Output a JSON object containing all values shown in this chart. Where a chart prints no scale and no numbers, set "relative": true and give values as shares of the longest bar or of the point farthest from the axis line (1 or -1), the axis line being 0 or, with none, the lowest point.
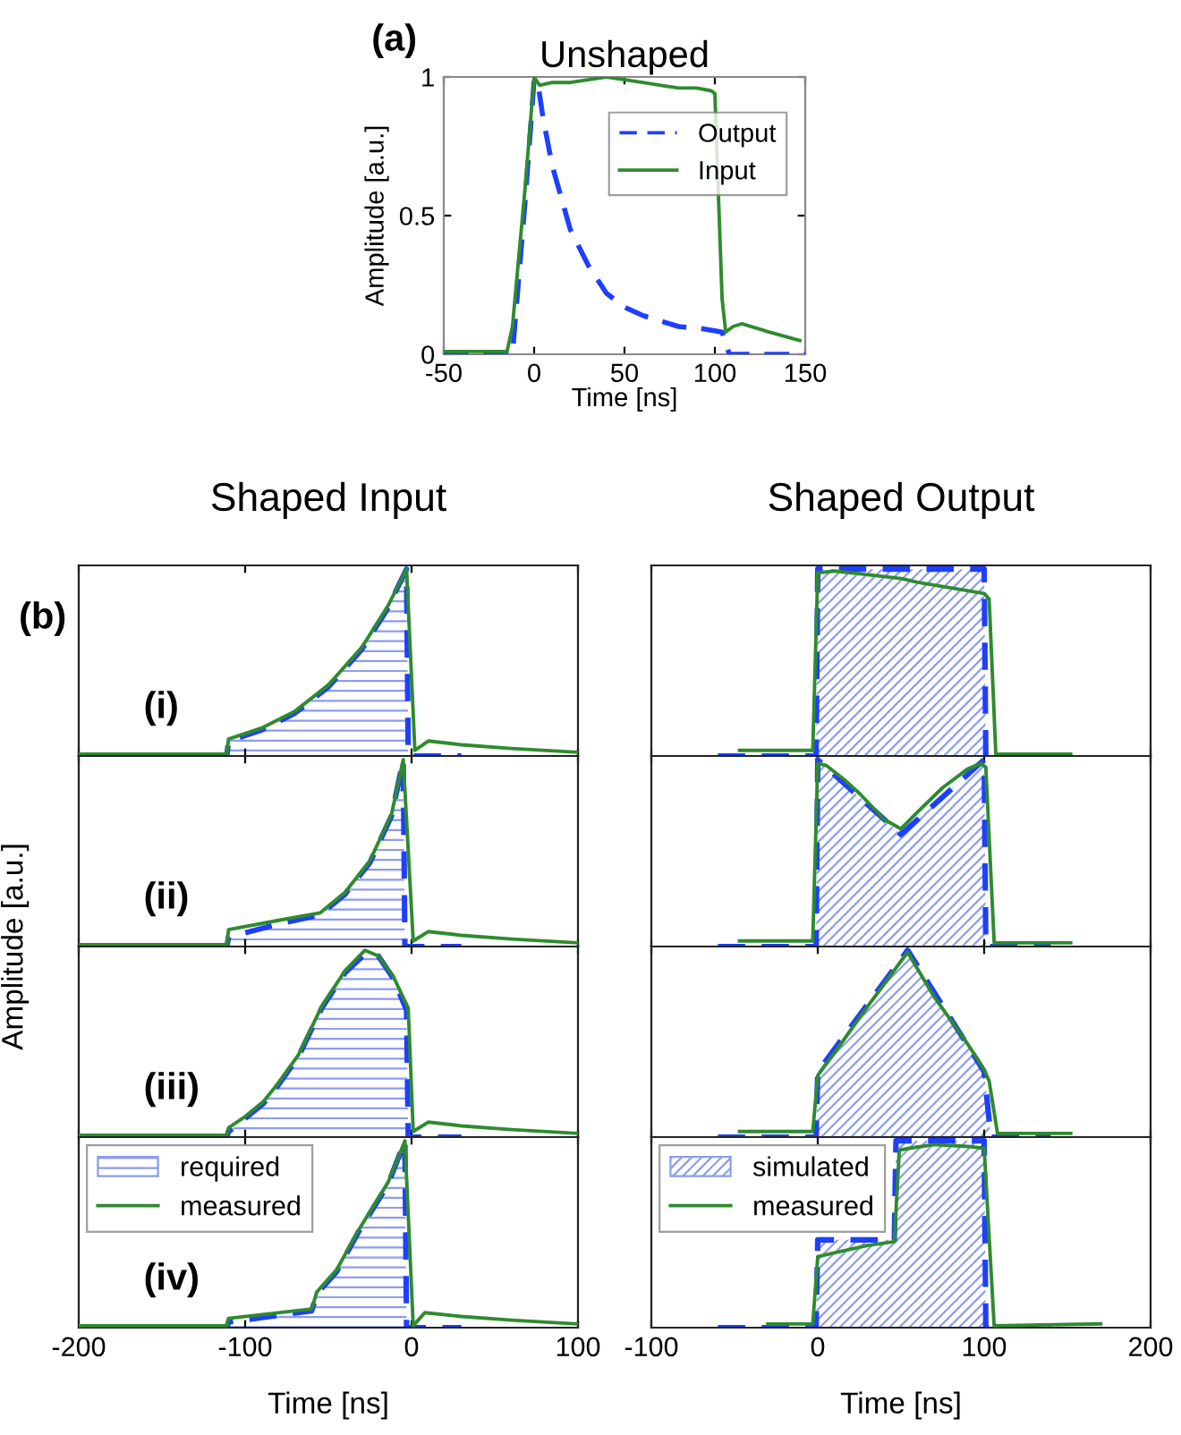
{
  "chart_data": [
    {
      "type": "line",
      "title": "Unshaped",
      "xlabel": "Time [ns]",
      "ylabel": "Amplitude [a.u.]",
      "annotations": [
        "(a)"
      ],
      "xlim": [
        -50,
        150
      ],
      "xticks": [
        -50,
        0,
        50,
        100,
        150
      ],
      "ylim": [
        0,
        1
      ],
      "yticks": [
        0,
        0.5,
        1
      ],
      "legend": "top right",
      "series": [
        {
          "name": "Output",
          "color": "#1f3fff",
          "line_style": "dashed",
          "x": [
            -50,
            -12,
            -5,
            0,
            2,
            5,
            10,
            20,
            30,
            40,
            50,
            60,
            70,
            80,
            90,
            100,
            104,
            108,
            150
          ],
          "values": [
            0,
            0,
            0.55,
            0.99,
            0.98,
            0.85,
            0.68,
            0.45,
            0.32,
            0.22,
            0.17,
            0.14,
            0.12,
            0.1,
            0.095,
            0.085,
            0.08,
            0,
            0
          ]
        },
        {
          "name": "Input",
          "color": "#2e8b2e",
          "line_style": "solid",
          "x": [
            -50,
            -15,
            -12,
            -5,
            0,
            3,
            10,
            20,
            30,
            40,
            50,
            60,
            70,
            80,
            90,
            98,
            100,
            104,
            106,
            110,
            115,
            130,
            147
          ],
          "values": [
            0.01,
            0.01,
            0.1,
            0.6,
            1.0,
            0.97,
            0.98,
            0.98,
            0.99,
            1.0,
            0.99,
            0.98,
            0.97,
            0.96,
            0.96,
            0.95,
            0.94,
            0.2,
            0.08,
            0.1,
            0.11,
            0.08,
            0.05
          ]
        }
      ]
    },
    {
      "type": "line",
      "title": "Shaped Input",
      "annotations": [
        "(b)",
        "(i)"
      ],
      "relative": true,
      "xlim": [
        -200,
        100
      ],
      "xticks": [
        -200,
        -100,
        0,
        100
      ],
      "tick_labels": false,
      "series": [
        {
          "type": "area",
          "color": "#1f3fff",
          "line_style": "dashed",
          "x": [
            -200,
            -111,
            -110,
            -90,
            -70,
            -50,
            -30,
            -15,
            -3,
            -2,
            30
          ],
          "values": [
            0,
            0,
            0.08,
            0.14,
            0.23,
            0.37,
            0.57,
            0.78,
            1.0,
            0,
            0
          ]
        },
        {
          "type": "line",
          "color": "#2e8b2e",
          "line_style": "solid",
          "x": [
            -200,
            -111,
            -110,
            -90,
            -70,
            -50,
            -30,
            -15,
            -3,
            2,
            10,
            30,
            60,
            100
          ],
          "values": [
            0.01,
            0.01,
            0.09,
            0.15,
            0.24,
            0.38,
            0.58,
            0.79,
            1.0,
            0.03,
            0.08,
            0.06,
            0.04,
            0.02
          ]
        }
      ]
    },
    {
      "type": "line",
      "ylabel": "Amplitude [a.u.]",
      "annotations": [
        "(ii)"
      ],
      "relative": true,
      "xlim": [
        -200,
        100
      ],
      "xticks": [
        -200,
        -100,
        0,
        100
      ],
      "tick_labels": false,
      "series": [
        {
          "type": "area",
          "color": "#1f3fff",
          "line_style": "dashed",
          "x": [
            -200,
            -111,
            -110,
            -80,
            -55,
            -40,
            -25,
            -12,
            -5,
            -4,
            30
          ],
          "values": [
            0,
            0,
            0.05,
            0.12,
            0.17,
            0.28,
            0.45,
            0.7,
            1.0,
            0,
            0
          ]
        },
        {
          "type": "line",
          "color": "#2e8b2e",
          "line_style": "solid",
          "x": [
            -200,
            -111,
            -110,
            -80,
            -55,
            -40,
            -25,
            -12,
            -5,
            1,
            10,
            30,
            60,
            100
          ],
          "values": [
            0.01,
            0.01,
            0.09,
            0.14,
            0.18,
            0.29,
            0.46,
            0.71,
            1.0,
            0.03,
            0.08,
            0.06,
            0.04,
            0.02
          ]
        }
      ]
    },
    {
      "type": "line",
      "annotations": [
        "(iii)"
      ],
      "relative": true,
      "xlim": [
        -200,
        100
      ],
      "xticks": [
        -200,
        -100,
        0,
        100
      ],
      "tick_labels": false,
      "series": [
        {
          "type": "area",
          "color": "#1f3fff",
          "line_style": "dashed",
          "x": [
            -200,
            -111,
            -110,
            -100,
            -89,
            -80,
            -68,
            -54,
            -40,
            -28,
            -20,
            -11,
            -3,
            -2,
            30
          ],
          "values": [
            0,
            0,
            0.03,
            0.1,
            0.18,
            0.28,
            0.43,
            0.69,
            0.88,
            0.98,
            0.97,
            0.85,
            0.68,
            0,
            0
          ]
        },
        {
          "type": "line",
          "color": "#2e8b2e",
          "line_style": "solid",
          "x": [
            -200,
            -111,
            -110,
            -100,
            -89,
            -80,
            -68,
            -54,
            -40,
            -28,
            -20,
            -11,
            -2,
            1,
            10,
            30,
            60,
            100
          ],
          "values": [
            0.01,
            0.01,
            0.05,
            0.11,
            0.19,
            0.29,
            0.44,
            0.7,
            0.89,
            1.0,
            0.97,
            0.86,
            0.69,
            0.03,
            0.08,
            0.06,
            0.04,
            0.02
          ]
        }
      ]
    },
    {
      "type": "line",
      "xlabel": "Time [ns]",
      "annotations": [
        "(iv)"
      ],
      "relative": true,
      "xlim": [
        -200,
        100
      ],
      "xticks": [
        -200,
        -100,
        0,
        100
      ],
      "tick_labels": "x",
      "legend": "top left",
      "series": [
        {
          "type": "area",
          "name": "required",
          "color": "#1f3fff",
          "line_style": "dashed",
          "x": [
            -200,
            -111,
            -110,
            -60,
            -57,
            -45,
            -32,
            -14,
            -4,
            -3,
            30
          ],
          "values": [
            0,
            0,
            0.03,
            0.09,
            0.18,
            0.3,
            0.51,
            0.77,
            1.0,
            0,
            0
          ]
        },
        {
          "type": "line",
          "name": "measured",
          "color": "#2e8b2e",
          "line_style": "solid",
          "x": [
            -200,
            -111,
            -110,
            -60,
            -57,
            -45,
            -32,
            -14,
            -4,
            1,
            8,
            30,
            60,
            100
          ],
          "values": [
            0.01,
            0.01,
            0.05,
            0.1,
            0.19,
            0.31,
            0.52,
            0.78,
            1.0,
            0.01,
            0.08,
            0.06,
            0.04,
            0.02
          ]
        }
      ]
    },
    {
      "type": "line",
      "title": "Shaped Output",
      "relative": true,
      "xlim": [
        -100,
        200
      ],
      "xticks": [
        -100,
        0,
        100,
        200
      ],
      "tick_labels": false,
      "series": [
        {
          "type": "area",
          "color": "#1f3fff",
          "line_style": "dashed",
          "x": [
            -60,
            -1,
            0,
            100,
            101,
            140
          ],
          "values": [
            0,
            0,
            1.0,
            1.0,
            0,
            0
          ]
        },
        {
          "type": "line",
          "color": "#2e8b2e",
          "line_style": "solid",
          "x": [
            -47,
            -3,
            0,
            10,
            30,
            50,
            60,
            80,
            100,
            103,
            107,
            152
          ],
          "values": [
            0.03,
            0.03,
            0.98,
            0.99,
            0.97,
            0.95,
            0.93,
            0.9,
            0.87,
            0.84,
            0.01,
            0.01
          ]
        }
      ]
    },
    {
      "type": "line",
      "relative": true,
      "xlim": [
        -100,
        200
      ],
      "xticks": [
        -100,
        0,
        100,
        200
      ],
      "tick_labels": false,
      "series": [
        {
          "type": "area",
          "color": "#1f3fff",
          "line_style": "dashed",
          "x": [
            -60,
            -1,
            0,
            50,
            100,
            101,
            140
          ],
          "values": [
            0,
            0,
            1.0,
            0.6,
            1.0,
            0,
            0
          ]
        },
        {
          "type": "line",
          "color": "#2e8b2e",
          "line_style": "solid",
          "x": [
            -47,
            -3,
            0,
            5,
            15,
            25,
            40,
            50,
            60,
            75,
            90,
            98,
            101,
            106,
            152
          ],
          "values": [
            0.03,
            0.03,
            0.98,
            0.97,
            0.9,
            0.82,
            0.68,
            0.63,
            0.72,
            0.85,
            0.95,
            0.98,
            0.96,
            0.02,
            0.02
          ]
        }
      ]
    },
    {
      "type": "line",
      "relative": true,
      "xlim": [
        -100,
        200
      ],
      "xticks": [
        -100,
        0,
        100,
        200
      ],
      "tick_labels": false,
      "series": [
        {
          "type": "area",
          "color": "#1f3fff",
          "line_style": "dashed",
          "x": [
            -60,
            -1,
            0,
            54,
            100,
            104,
            140
          ],
          "values": [
            0,
            0,
            0.35,
            1.0,
            0.35,
            0,
            0
          ]
        },
        {
          "type": "line",
          "color": "#2e8b2e",
          "line_style": "solid",
          "x": [
            -47,
            -3,
            0,
            10,
            30,
            54,
            70,
            90,
            100,
            103,
            108,
            152
          ],
          "values": [
            0.03,
            0.03,
            0.33,
            0.45,
            0.7,
            0.99,
            0.75,
            0.5,
            0.36,
            0.3,
            0.02,
            0.02
          ]
        }
      ]
    },
    {
      "type": "line",
      "xlabel": "Time [ns]",
      "relative": true,
      "xlim": [
        -100,
        200
      ],
      "xticks": [
        -100,
        0,
        100,
        200
      ],
      "tick_labels": "x",
      "legend": "top left",
      "series": [
        {
          "type": "area",
          "name": "simulated",
          "color": "#1f3fff",
          "line_style": "dashed",
          "x": [
            -60,
            -1,
            0,
            46,
            47,
            100,
            101,
            140
          ],
          "values": [
            0,
            0,
            0.47,
            0.47,
            1.0,
            1.0,
            0,
            0
          ]
        },
        {
          "type": "line",
          "name": "measured",
          "color": "#2e8b2e",
          "line_style": "solid",
          "x": [
            -30,
            -3,
            0,
            10,
            30,
            46,
            49,
            55,
            70,
            90,
            100,
            106,
            170
          ],
          "values": [
            0.02,
            0.02,
            0.38,
            0.4,
            0.44,
            0.46,
            0.95,
            0.96,
            0.98,
            0.97,
            0.96,
            0.01,
            0.02
          ]
        }
      ]
    }
  ]
}
